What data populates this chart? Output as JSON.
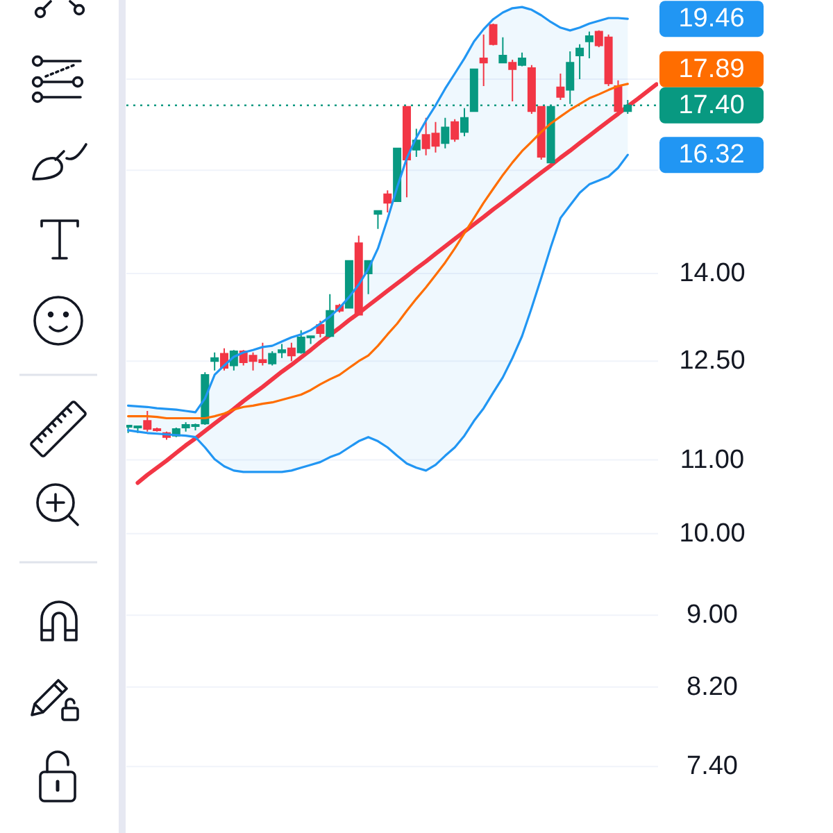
{
  "chart_data": {
    "type": "candlestick",
    "categories": [
      null,
      null,
      null,
      null,
      null,
      null,
      null,
      null,
      null,
      null,
      null,
      null,
      null,
      null,
      null,
      null,
      null,
      null,
      null,
      null,
      null,
      null,
      null,
      null,
      null,
      null,
      null,
      null,
      null,
      null,
      null,
      null,
      null,
      null,
      null,
      null,
      null,
      null,
      null,
      null,
      null,
      null,
      null,
      null,
      null,
      null,
      null,
      null,
      null,
      null,
      null,
      null,
      null,
      null,
      null,
      null
    ],
    "ohlc": [
      [
        11.48,
        11.51,
        11.39,
        11.5
      ],
      [
        11.47,
        11.49,
        11.39,
        11.49
      ],
      [
        11.57,
        11.72,
        11.41,
        11.45
      ],
      [
        11.45,
        11.47,
        11.41,
        11.43
      ],
      [
        11.39,
        11.41,
        11.29,
        11.33
      ],
      [
        11.35,
        11.47,
        11.33,
        11.45
      ],
      [
        11.47,
        11.55,
        11.41,
        11.51
      ],
      [
        11.49,
        11.53,
        11.43,
        11.51
      ],
      [
        11.53,
        12.32,
        11.51,
        12.28
      ],
      [
        12.5,
        12.64,
        12.35,
        12.55
      ],
      [
        12.62,
        12.71,
        12.35,
        12.39
      ],
      [
        12.43,
        12.68,
        12.35,
        12.66
      ],
      [
        12.66,
        12.68,
        12.43,
        12.48
      ],
      [
        12.59,
        12.64,
        12.35,
        12.5
      ],
      [
        12.52,
        12.8,
        12.43,
        12.48
      ],
      [
        12.46,
        12.66,
        12.43,
        12.62
      ],
      [
        12.64,
        12.78,
        12.55,
        12.68
      ],
      [
        12.71,
        12.8,
        12.5,
        12.59
      ],
      [
        12.64,
        13.01,
        12.62,
        12.89
      ],
      [
        12.89,
        12.91,
        12.78,
        12.91
      ],
      [
        13.1,
        13.17,
        12.89,
        12.96
      ],
      [
        12.91,
        13.63,
        12.89,
        13.34
      ],
      [
        13.43,
        13.46,
        13.31,
        13.34
      ],
      [
        13.39,
        14.23,
        13.39,
        14.23
      ],
      [
        14.56,
        14.7,
        13.27,
        13.27
      ],
      [
        14.0,
        14.23,
        13.63,
        14.23
      ],
      [
        15.12,
        15.18,
        14.83,
        15.18
      ],
      [
        15.51,
        15.59,
        15.15,
        15.34
      ],
      [
        15.37,
        16.46,
        15.37,
        16.46
      ],
      [
        17.37,
        17.37,
        15.45,
        16.22
      ],
      [
        16.43,
        16.88,
        16.28,
        16.63
      ],
      [
        16.75,
        17.12,
        16.31,
        16.46
      ],
      [
        16.78,
        17.03,
        16.37,
        16.51
      ],
      [
        16.57,
        17.12,
        16.46,
        16.91
      ],
      [
        17.03,
        17.09,
        16.6,
        16.66
      ],
      [
        16.81,
        17.34,
        16.72,
        17.12
      ],
      [
        17.27,
        18.23,
        17.27,
        18.23
      ],
      [
        18.49,
        19.07,
        17.84,
        18.39
      ],
      [
        19.31,
        19.34,
        18.8,
        18.83
      ],
      [
        18.39,
        19.0,
        18.39,
        18.56
      ],
      [
        18.39,
        18.46,
        17.49,
        18.23
      ],
      [
        18.33,
        18.63,
        18.3,
        18.49
      ],
      [
        18.26,
        18.33,
        17.21,
        17.27
      ],
      [
        17.37,
        17.37,
        16.22,
        16.28
      ],
      [
        16.16,
        17.37,
        16.16,
        17.37
      ],
      [
        17.81,
        18.13,
        17.52,
        17.59
      ],
      [
        17.75,
        18.66,
        17.43,
        18.39
      ],
      [
        18.56,
        18.83,
        18.0,
        18.73
      ],
      [
        18.9,
        19.14,
        18.49,
        19.03
      ],
      [
        19.14,
        19.17,
        18.76,
        18.8
      ],
      [
        19.0,
        19.07,
        17.84,
        17.9
      ],
      [
        17.84,
        17.97,
        17.21,
        17.27
      ],
      [
        17.27,
        17.52,
        17.21,
        17.4
      ],
      null,
      null,
      null
    ],
    "colors": [
      "#089981",
      "#089981",
      "#f23645",
      "#f23645",
      "#f23645",
      "#089981",
      "#089981",
      "#089981",
      "#089981",
      "#089981",
      "#f23645",
      "#089981",
      "#f23645",
      "#f23645",
      "#f23645",
      "#089981",
      "#089981",
      "#f23645",
      "#089981",
      "#089981",
      "#f23645",
      "#089981",
      "#f23645",
      "#089981",
      "#f23645",
      "#089981",
      "#089981",
      "#f23645",
      "#089981",
      "#f23645",
      "#089981",
      "#f23645",
      "#f23645",
      "#089981",
      "#f23645",
      "#089981",
      "#089981",
      "#f23645",
      "#f23645",
      "#089981",
      "#f23645",
      "#089981",
      "#f23645",
      "#f23645",
      "#089981",
      "#f23645",
      "#089981",
      "#089981",
      "#089981",
      "#f23645",
      "#f23645",
      "#f23645",
      "#089981",
      null,
      null,
      null
    ],
    "series": [
      {
        "type": "line",
        "color": "#2196f3",
        "values": [
          11.8,
          11.79,
          11.78,
          11.76,
          11.75,
          11.74,
          11.72,
          11.7,
          11.91,
          12.28,
          12.43,
          12.57,
          12.64,
          12.68,
          12.73,
          12.75,
          12.82,
          12.89,
          12.94,
          13.01,
          13.12,
          13.24,
          13.39,
          13.58,
          13.8,
          14.08,
          14.46,
          15.02,
          15.65,
          16.25,
          16.69,
          17.06,
          17.4,
          17.78,
          18.13,
          18.49,
          18.9,
          19.2,
          19.45,
          19.62,
          19.73,
          19.76,
          19.69,
          19.55,
          19.38,
          19.24,
          19.17,
          19.24,
          19.34,
          19.41,
          19.48,
          19.48,
          19.46,
          null,
          null,
          null
        ],
        "lower": [
          11.43,
          11.41,
          11.39,
          11.38,
          11.37,
          11.36,
          11.35,
          11.33,
          11.18,
          11.01,
          10.91,
          10.85,
          10.83,
          10.83,
          10.83,
          10.83,
          10.83,
          10.85,
          10.89,
          10.93,
          10.97,
          11.04,
          11.09,
          11.18,
          11.27,
          11.33,
          11.27,
          11.18,
          11.06,
          10.95,
          10.89,
          10.85,
          10.93,
          11.06,
          11.18,
          11.35,
          11.57,
          11.76,
          12.0,
          12.24,
          12.55,
          12.91,
          13.39,
          13.92,
          14.49,
          15.04,
          15.29,
          15.54,
          15.71,
          15.79,
          15.87,
          16.05,
          16.32,
          null,
          null,
          null
        ],
        "upper": [
          11.8,
          11.79,
          11.78,
          11.76,
          11.75,
          11.74,
          11.72,
          11.7,
          11.91,
          12.28,
          12.43,
          12.57,
          12.64,
          12.68,
          12.73,
          12.75,
          12.82,
          12.89,
          12.94,
          13.01,
          13.12,
          13.24,
          13.39,
          13.58,
          13.8,
          14.08,
          14.46,
          15.02,
          15.65,
          16.25,
          16.69,
          17.06,
          17.4,
          17.78,
          18.13,
          18.49,
          18.9,
          19.2,
          19.45,
          19.62,
          19.73,
          19.76,
          19.69,
          19.55,
          19.38,
          19.24,
          19.17,
          19.24,
          19.34,
          19.41,
          19.48,
          19.48,
          19.46,
          null,
          null,
          null
        ]
      },
      {
        "type": "line",
        "color": "#ff6d00",
        "values": [
          11.64,
          11.64,
          11.64,
          11.63,
          11.61,
          11.61,
          11.61,
          11.61,
          11.61,
          11.64,
          11.68,
          11.74,
          11.78,
          11.8,
          11.83,
          11.85,
          11.89,
          11.93,
          11.97,
          12.04,
          12.13,
          12.21,
          12.28,
          12.39,
          12.5,
          12.59,
          12.75,
          12.94,
          13.12,
          13.34,
          13.55,
          13.75,
          13.97,
          14.2,
          14.46,
          14.75,
          15.04,
          15.34,
          15.62,
          15.9,
          16.16,
          16.4,
          16.6,
          16.81,
          17.0,
          17.15,
          17.3,
          17.43,
          17.56,
          17.65,
          17.75,
          17.84,
          17.89,
          null,
          null,
          null
        ]
      },
      {
        "type": "line",
        "color": "#2196f3",
        "values": [
          11.43,
          11.41,
          11.39,
          11.38,
          11.37,
          11.36,
          11.35,
          11.33,
          11.18,
          11.01,
          10.91,
          10.85,
          10.83,
          10.83,
          10.83,
          10.83,
          10.83,
          10.85,
          10.89,
          10.93,
          10.97,
          11.04,
          11.09,
          11.18,
          11.27,
          11.33,
          11.27,
          11.18,
          11.06,
          10.95,
          10.89,
          10.85,
          10.93,
          11.06,
          11.18,
          11.35,
          11.57,
          11.76,
          12.0,
          12.24,
          12.55,
          12.91,
          13.39,
          13.92,
          14.49,
          15.04,
          15.29,
          15.54,
          15.71,
          15.79,
          15.87,
          16.05,
          16.32,
          null,
          null,
          null
        ]
      },
      {
        "type": "line",
        "color": "#f23645",
        "values": [
          null,
          10.68,
          10.79,
          10.89,
          10.99,
          11.1,
          11.21,
          11.31,
          11.42,
          11.53,
          11.64,
          11.75,
          11.87,
          11.98,
          12.09,
          12.21,
          12.33,
          12.44,
          12.56,
          12.68,
          12.81,
          12.93,
          13.05,
          13.18,
          13.3,
          13.43,
          13.56,
          13.69,
          13.82,
          13.95,
          14.09,
          14.22,
          14.36,
          14.5,
          14.64,
          14.78,
          14.92,
          15.06,
          15.21,
          15.35,
          15.5,
          15.65,
          15.8,
          15.95,
          16.1,
          16.26,
          16.41,
          16.57,
          16.73,
          16.89,
          17.05,
          17.21,
          17.38,
          17.54,
          17.71,
          17.88
        ]
      }
    ],
    "annotations": [
      "19.46",
      "17.89",
      "16.32"
    ],
    "ylim": [
      6.79,
      19.94
    ],
    "yticks": [
      {
        "value": 18,
        "label": null
      },
      {
        "value": 16,
        "label": null
      },
      {
        "value": 14,
        "label": "14.00"
      },
      {
        "value": 12.5,
        "label": "12.50"
      },
      {
        "value": 11,
        "label": "11.00"
      },
      {
        "value": 10,
        "label": "10.00"
      },
      {
        "value": 9,
        "label": "9.00"
      },
      {
        "value": 8.2,
        "label": "8.20"
      },
      {
        "value": 7.4,
        "label": "7.40"
      }
    ],
    "log": true,
    "grid": "y",
    "tick_labels": "y",
    "ref_lines": [
      {
        "axis": "y",
        "value": 17.4,
        "label": "17.40",
        "color": "#089981",
        "line_style": "dotted"
      }
    ]
  }
}
